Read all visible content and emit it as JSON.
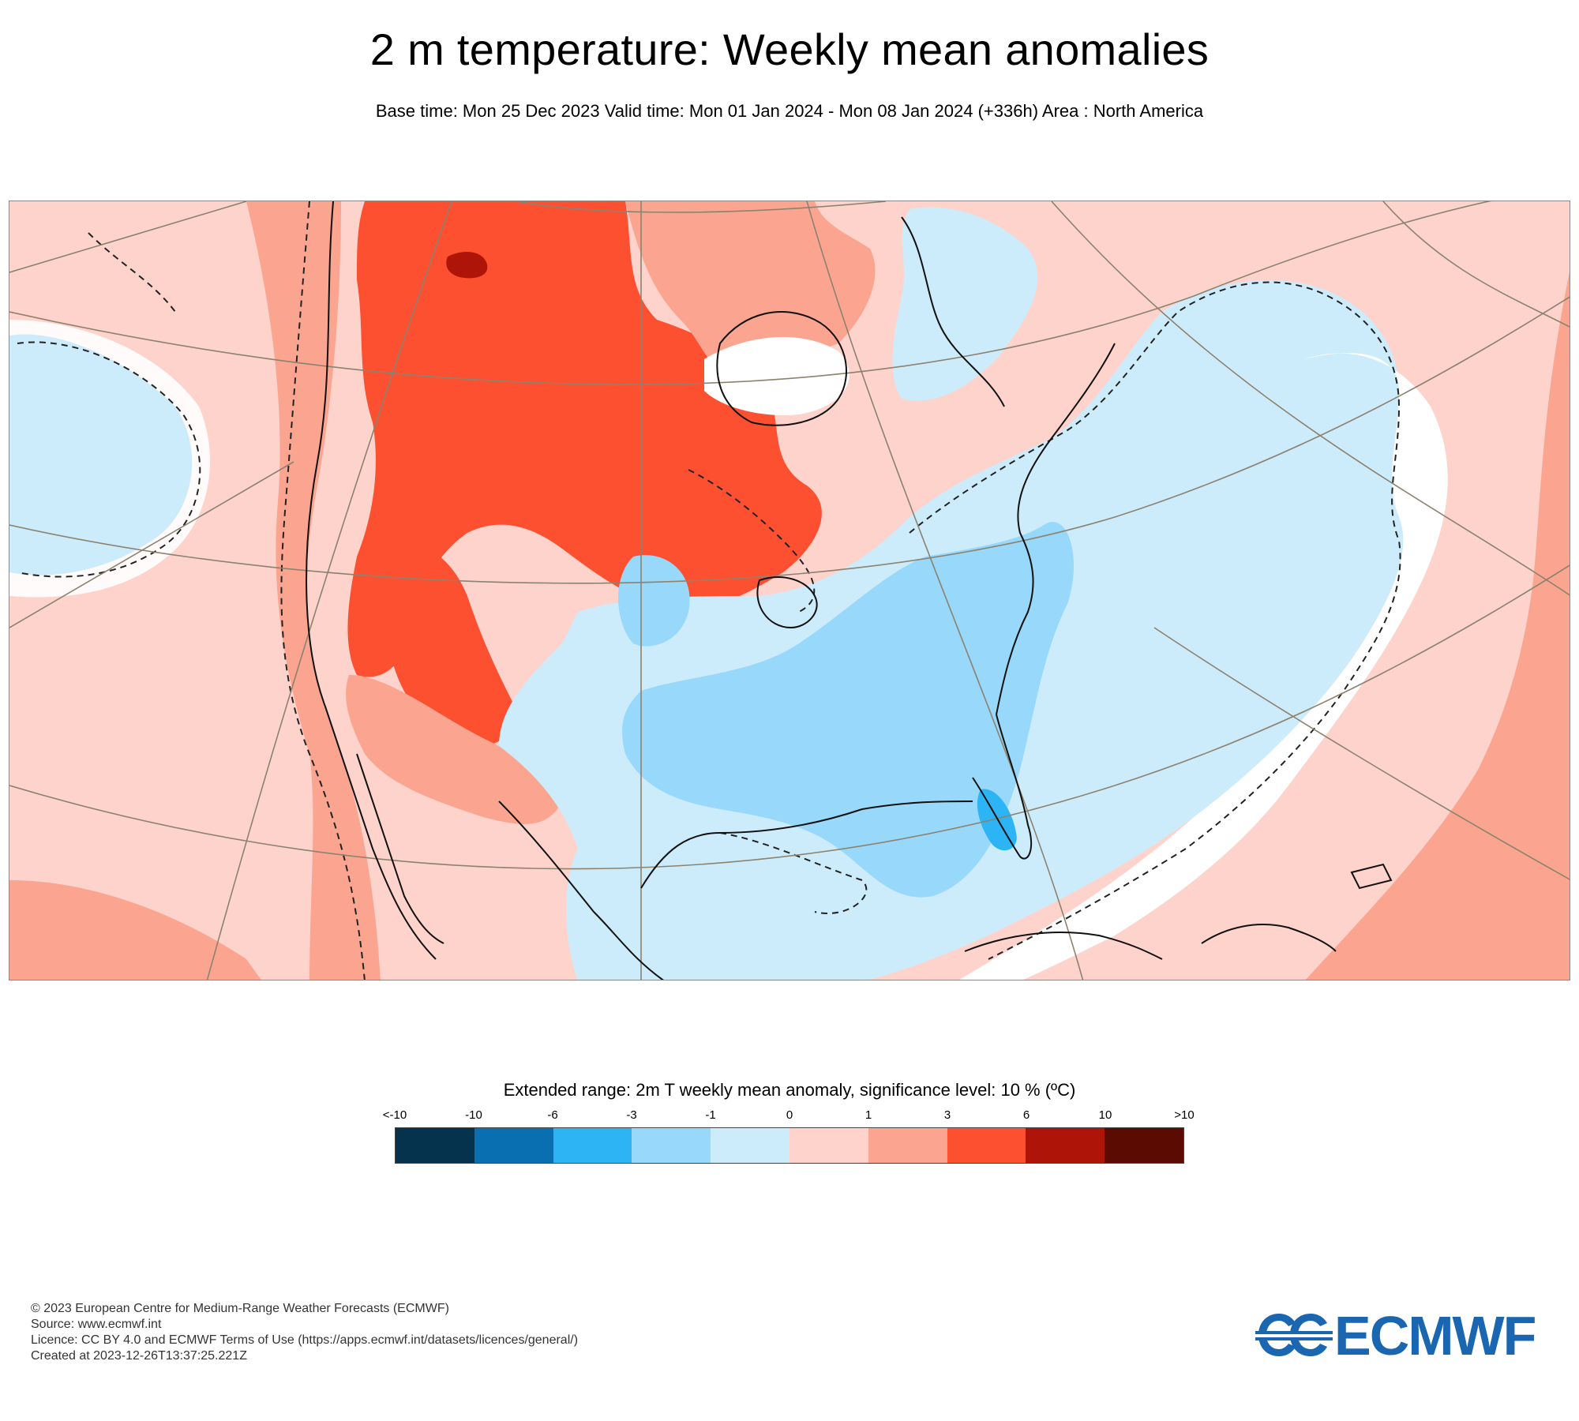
{
  "header": {
    "title": "2 m temperature: Weekly mean anomalies",
    "subtitle": "Base time: Mon 25 Dec 2023 Valid time: Mon 01 Jan 2024 - Mon 08 Jan 2024 (+336h) Area : North America"
  },
  "map": {
    "region": "North America",
    "projection_graticule": true,
    "significance_contour": "dashed"
  },
  "legend": {
    "title": "Extended range: 2m T weekly mean anomaly, significance level: 10 % (ºC)",
    "tick_labels": [
      "<-10",
      "-10",
      "-6",
      "-3",
      "-1",
      "0",
      "1",
      "3",
      "6",
      "10",
      ">10"
    ],
    "colors": [
      "#05324d",
      "#0a6fb0",
      "#2db4f5",
      "#98d8fb",
      "#cdecfb",
      "#fdd3cc",
      "#fba490",
      "#fc5030",
      "#ae1408",
      "#5c0b02"
    ]
  },
  "footer": {
    "lines": [
      "© 2023 European Centre for Medium-Range Weather Forecasts (ECMWF)",
      "Source: www.ecmwf.int",
      "Licence: CC BY 4.0 and ECMWF Terms of Use (https://apps.ecmwf.int/datasets/licences/general/)",
      "Created at 2023-12-26T13:37:25.221Z"
    ]
  },
  "logo": {
    "text": "ECMWF",
    "color": "#1a66b0"
  }
}
